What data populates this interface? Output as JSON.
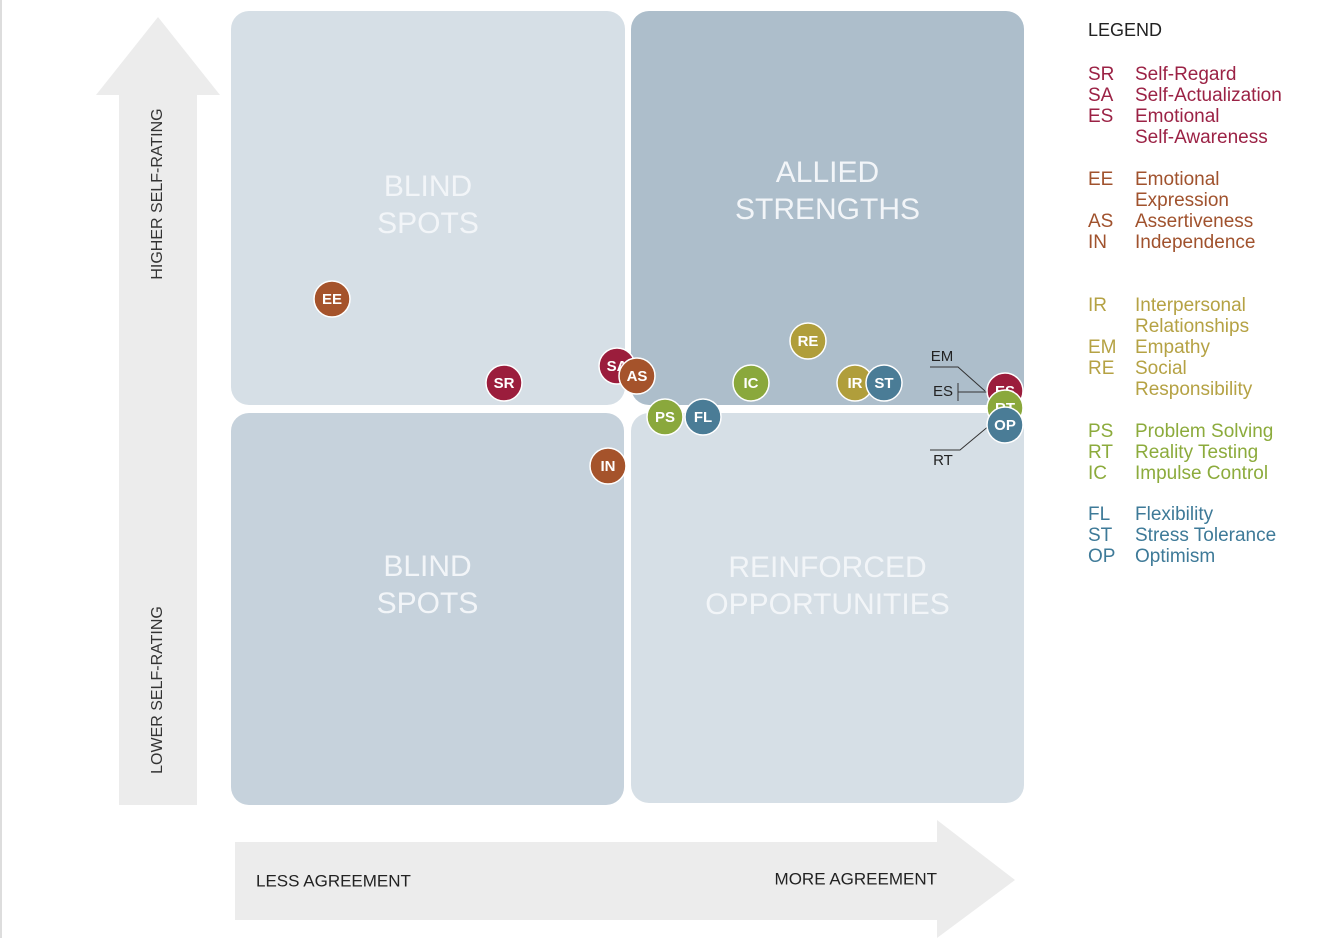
{
  "axes": {
    "higher": "HIGHER SELF-RATING",
    "lower": "LOWER SELF-RATING",
    "less": "LESS AGREEMENT",
    "more": "MORE AGREEMENT"
  },
  "quadrants": [
    {
      "lines": [
        "BLIND",
        "SPOTS"
      ]
    },
    {
      "lines": [
        "ALLIED",
        "STRENGTHS"
      ]
    },
    {
      "lines": [
        "BLIND",
        "SPOTS"
      ]
    },
    {
      "lines": [
        "REINFORCED",
        "OPPORTUNITIES"
      ]
    }
  ],
  "points": [
    {
      "label": "EE",
      "color": "#a5532b"
    },
    {
      "label": "SR",
      "color": "#9b1d3c"
    },
    {
      "label": "SA",
      "color": "#9b1d3c"
    },
    {
      "label": "AS",
      "color": "#a5532b"
    },
    {
      "label": "IN",
      "color": "#a5532b"
    },
    {
      "label": "PS",
      "color": "#8aa83c"
    },
    {
      "label": "FL",
      "color": "#4a7c96"
    },
    {
      "label": "IC",
      "color": "#8aa83c"
    },
    {
      "label": "RE",
      "color": "#b09e3b"
    },
    {
      "label": "IR",
      "color": "#b09e3b"
    },
    {
      "label": "ST",
      "color": "#4a7c96"
    },
    {
      "label": "ES",
      "color": "#9b1d3c"
    },
    {
      "label": "RT",
      "color": "#8aa83c"
    },
    {
      "label": "OP",
      "color": "#4a7c96"
    }
  ],
  "callouts": [
    "EM",
    "ES",
    "RT"
  ],
  "legend": {
    "title": "LEGEND",
    "groups": [
      {
        "color": "#9b2245",
        "items": [
          {
            "code": "SR",
            "lines": [
              "Self-Regard"
            ]
          },
          {
            "code": "SA",
            "lines": [
              "Self-Actualization"
            ]
          },
          {
            "code": "ES",
            "lines": [
              "Emotional",
              "Self-Awareness"
            ]
          }
        ]
      },
      {
        "color": "#a0522d",
        "items": [
          {
            "code": "EE",
            "lines": [
              "Emotional",
              "Expression"
            ]
          },
          {
            "code": "AS",
            "lines": [
              "Assertiveness"
            ]
          },
          {
            "code": "IN",
            "lines": [
              "Independence"
            ]
          }
        ]
      },
      {
        "color": "#b5a244",
        "items": [
          {
            "code": "IR",
            "lines": [
              "Interpersonal",
              "Relationships"
            ]
          },
          {
            "code": "EM",
            "lines": [
              "Empathy"
            ]
          },
          {
            "code": "RE",
            "lines": [
              "Social",
              "Responsibility"
            ]
          }
        ]
      },
      {
        "color": "#8cab3c",
        "items": [
          {
            "code": "PS",
            "lines": [
              "Problem Solving"
            ]
          },
          {
            "code": "RT",
            "lines": [
              "Reality Testing"
            ]
          },
          {
            "code": "IC",
            "lines": [
              "Impulse Control"
            ]
          }
        ]
      },
      {
        "color": "#3e7a98",
        "items": [
          {
            "code": "FL",
            "lines": [
              "Flexibility"
            ]
          },
          {
            "code": "ST",
            "lines": [
              "Stress Tolerance"
            ]
          },
          {
            "code": "OP",
            "lines": [
              "Optimism"
            ]
          }
        ]
      }
    ]
  }
}
